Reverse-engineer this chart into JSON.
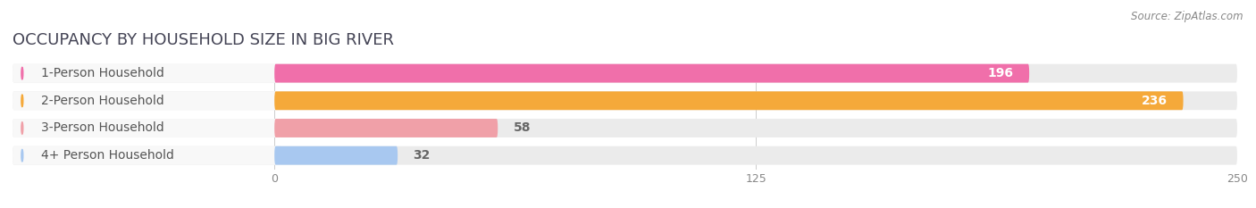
{
  "title": "OCCUPANCY BY HOUSEHOLD SIZE IN BIG RIVER",
  "source": "Source: ZipAtlas.com",
  "categories": [
    "1-Person Household",
    "2-Person Household",
    "3-Person Household",
    "4+ Person Household"
  ],
  "values": [
    196,
    236,
    58,
    32
  ],
  "bar_colors": [
    "#f06faa",
    "#f5a93a",
    "#f0a0a8",
    "#a8c8f0"
  ],
  "label_bg_color": "#f5f5f5",
  "bar_bg_color": "#ebebeb",
  "background_color": "#ffffff",
  "xlim": [
    0,
    250
  ],
  "xticks": [
    0,
    125,
    250
  ],
  "label_fontsize": 10,
  "value_fontsize": 10,
  "title_fontsize": 13,
  "title_color": "#444455",
  "label_text_color": "#555555",
  "source_color": "#888888"
}
